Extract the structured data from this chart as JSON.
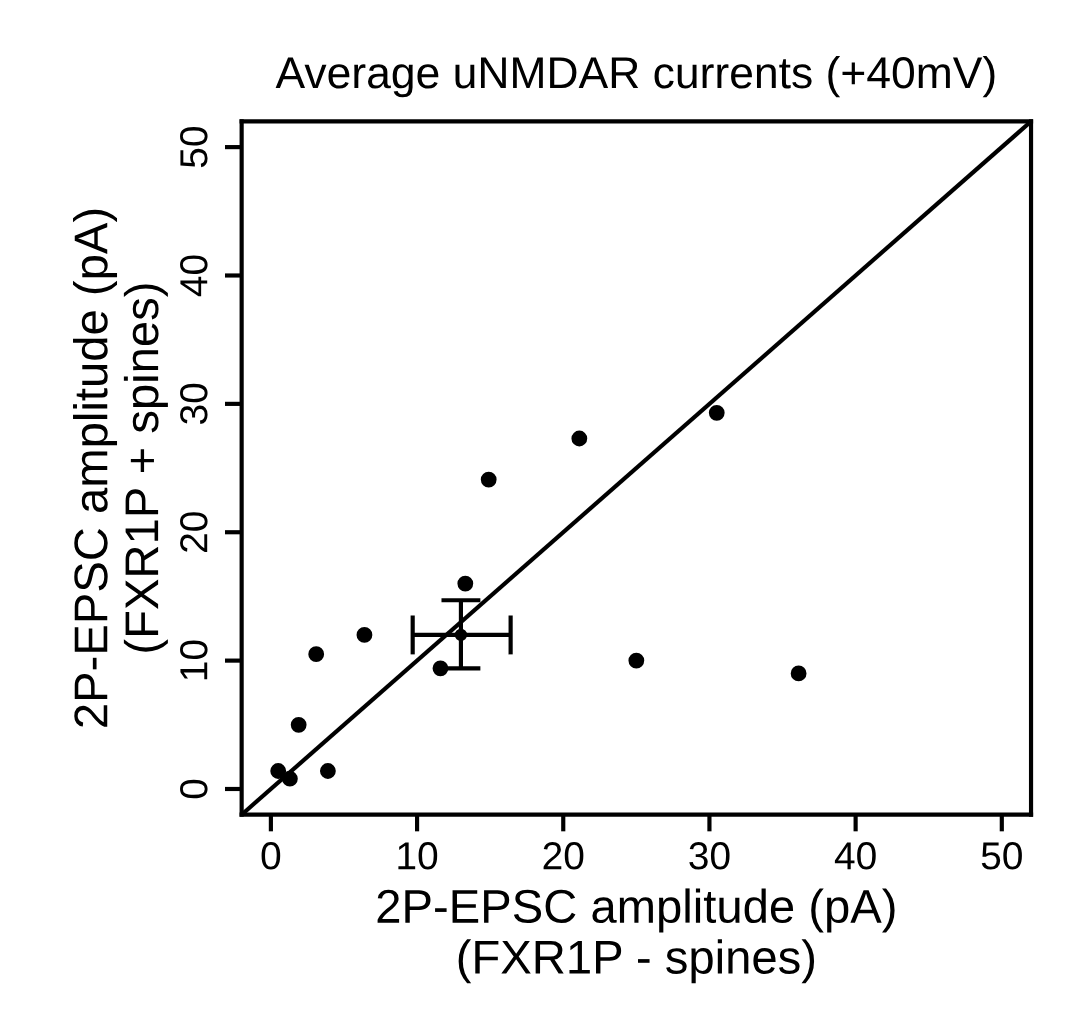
{
  "chart_data": {
    "type": "scatter",
    "title": "Average uNMDAR currents (+40mV)",
    "xlabel": "2P-EPSC amplitude (pA)\n(FXR1P - spines)",
    "ylabel": "2P-EPSC amplitude (pA)\n(FXR1P + spines)",
    "series": [
      {
        "color": "#000000",
        "marker": "circle",
        "x": [
          0.5,
          1.3,
          3.9,
          1.9,
          3.1,
          6.4,
          11.6,
          13.3,
          14.9,
          21.1,
          30.5,
          25.0,
          36.1
        ],
        "values": [
          1.4,
          0.8,
          1.4,
          5.0,
          10.5,
          12.0,
          9.4,
          16.0,
          24.1,
          27.3,
          29.3,
          10.0,
          9.0
        ]
      },
      {
        "color": "#000000",
        "marker": "circle",
        "x": [
          13.0
        ],
        "values": [
          12.0
        ],
        "errors": [
          [
            9.4,
            14.7
          ]
        ],
        "xerrors": [
          [
            9.7,
            16.4
          ]
        ]
      },
      {
        "type": "line",
        "color": "#000000",
        "marker": "none",
        "x": [
          -2,
          52
        ],
        "values": [
          -2,
          52
        ]
      }
    ],
    "xlim": [
      -2,
      52
    ],
    "ylim": [
      -2,
      52
    ],
    "xticks": [
      0,
      10,
      20,
      30,
      40,
      50
    ],
    "yticks": [
      0,
      10,
      20,
      30,
      40,
      50
    ],
    "grid": false,
    "legend": false
  }
}
